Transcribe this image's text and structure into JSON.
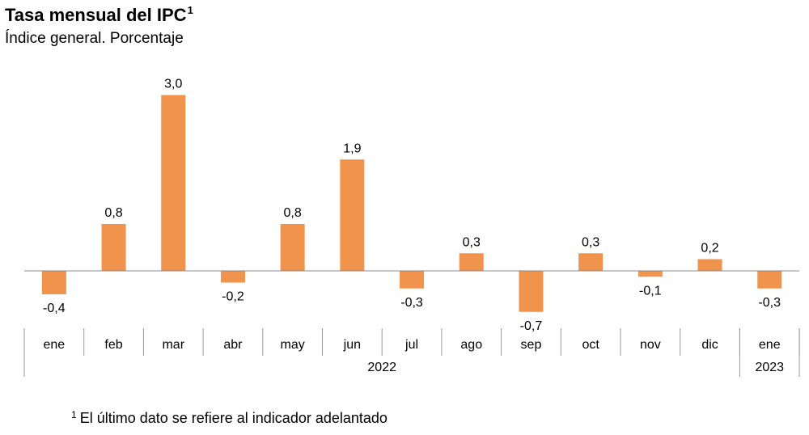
{
  "title": "Tasa mensual del IPC",
  "title_sup": "1",
  "subtitle": "Índice general. Porcentaje",
  "footnote": {
    "marker": "1",
    "text": "El último dato se refiere al indicador adelantado"
  },
  "chart_data": {
    "type": "bar",
    "categories": [
      "ene",
      "feb",
      "mar",
      "abr",
      "may",
      "jun",
      "jul",
      "ago",
      "sep",
      "oct",
      "nov",
      "dic",
      "ene"
    ],
    "values": [
      -0.4,
      0.8,
      3.0,
      -0.2,
      0.8,
      1.9,
      -0.3,
      0.3,
      -0.7,
      0.3,
      -0.1,
      0.2,
      -0.3
    ],
    "value_labels": [
      "-0,4",
      "0,8",
      "3,0",
      "-0,2",
      "0,8",
      "1,9",
      "-0,3",
      "0,3",
      "-0,7",
      "0,3",
      "-0,1",
      "0,2",
      "-0,3"
    ],
    "groups": [
      {
        "label": "2022",
        "count": 12
      },
      {
        "label": "2023",
        "count": 1
      }
    ],
    "bar_color": "#F0944D",
    "grid": false,
    "legend": "none"
  }
}
